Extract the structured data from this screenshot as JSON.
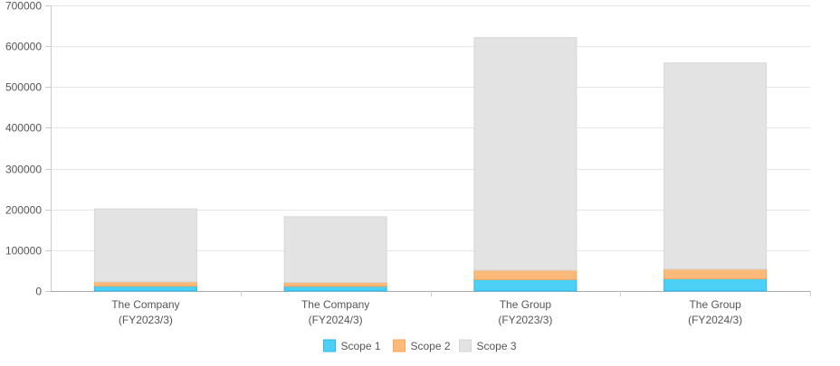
{
  "chart_data": {
    "type": "bar",
    "stacked": true,
    "categories": [
      [
        "The Company",
        "(FY2023/3)"
      ],
      [
        "The Company",
        "(FY2024/3)"
      ],
      [
        "The Group",
        "(FY2023/3)"
      ],
      [
        "The Group",
        "(FY2024/3)"
      ]
    ],
    "series": [
      {
        "name": "Scope 1",
        "color": "#4dd0f5",
        "border": "#2ab6ee",
        "values": [
          12000,
          11500,
          28000,
          30000
        ]
      },
      {
        "name": "Scope 2",
        "color": "#fdb97a",
        "border": "#f7a65a",
        "values": [
          10500,
          9500,
          23000,
          23500
        ]
      },
      {
        "name": "Scope 3",
        "color": "#e3e3e3",
        "border": "#d6d6d6",
        "values": [
          178500,
          161000,
          570000,
          505500
        ]
      }
    ],
    "ylim": [
      0,
      700000
    ],
    "yticks": [
      0,
      100000,
      200000,
      300000,
      400000,
      500000,
      600000,
      700000
    ],
    "grid": true,
    "legend": "bottom",
    "title": "",
    "xlabel": "",
    "ylabel": ""
  }
}
